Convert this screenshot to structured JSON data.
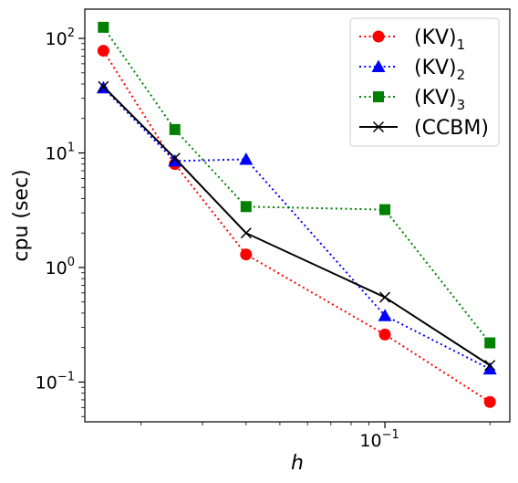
{
  "chart_data": {
    "type": "line",
    "xlabel": "h",
    "ylabel": "cpu (sec)",
    "x_scale": "log",
    "y_scale": "log",
    "xlim": [
      0.0138,
      0.228
    ],
    "ylim": [
      0.045,
      180
    ],
    "x_ticks": [
      {
        "value": 0.1,
        "base": "10",
        "exp": "−1"
      }
    ],
    "y_ticks": [
      {
        "value": 0.1,
        "base": "10",
        "exp": "−1"
      },
      {
        "value": 1,
        "base": "10",
        "exp": "0"
      },
      {
        "value": 10,
        "base": "10",
        "exp": "1"
      },
      {
        "value": 100,
        "base": "10",
        "exp": "2"
      }
    ],
    "legend_position": "top-right",
    "series": [
      {
        "key": "kv1",
        "label_main": "(KV)",
        "label_sub": "1",
        "color": "#ff0000",
        "marker": "circle",
        "linestyle": "dotted",
        "x": [
          0.0156,
          0.025,
          0.04,
          0.1,
          0.2
        ],
        "y": [
          78,
          8,
          1.3,
          0.26,
          0.067
        ]
      },
      {
        "key": "kv2",
        "label_main": "(KV)",
        "label_sub": "2",
        "color": "#0000ff",
        "marker": "triangle",
        "linestyle": "dotted",
        "x": [
          0.0156,
          0.025,
          0.04,
          0.1,
          0.2
        ],
        "y": [
          37,
          8.5,
          8.8,
          0.38,
          0.13
        ]
      },
      {
        "key": "kv3",
        "label_main": "(KV)",
        "label_sub": "3",
        "color": "#008000",
        "marker": "square",
        "linestyle": "dotted",
        "x": [
          0.0156,
          0.025,
          0.04,
          0.1,
          0.2
        ],
        "y": [
          125,
          16,
          3.4,
          3.2,
          0.22
        ]
      },
      {
        "key": "ccbm",
        "label_main": "(CCBM)",
        "label_sub": "",
        "color": "#000000",
        "marker": "x",
        "linestyle": "solid",
        "x": [
          0.0156,
          0.025,
          0.04,
          0.1,
          0.2
        ],
        "y": [
          38,
          9,
          2,
          0.55,
          0.14
        ]
      }
    ]
  }
}
